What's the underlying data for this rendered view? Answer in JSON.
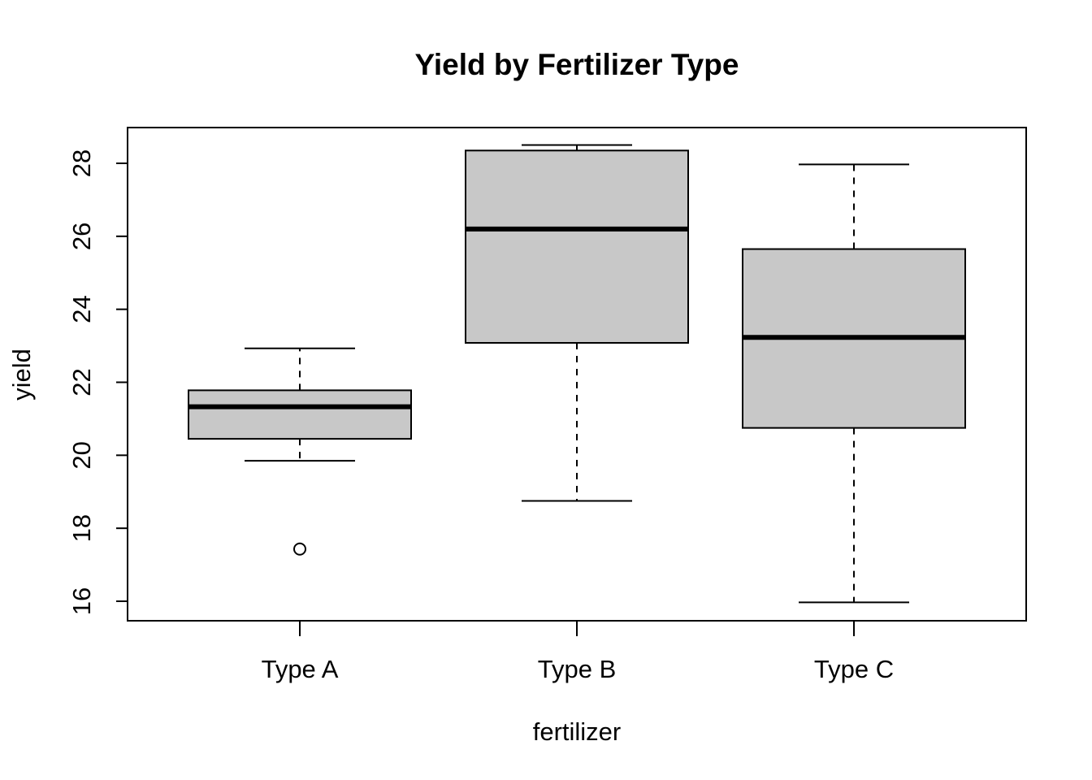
{
  "chart_data": {
    "type": "boxplot",
    "title": "Yield by Fertilizer Type",
    "xlabel": "fertilizer",
    "ylabel": "yield",
    "ylim": [
      15.5,
      29.0
    ],
    "yticks": [
      16,
      18,
      20,
      22,
      24,
      26,
      28
    ],
    "ytick_labels": [
      "16",
      "18",
      "20",
      "22",
      "24",
      "26",
      "28"
    ],
    "categories": [
      "Type A",
      "Type B",
      "Type C"
    ],
    "grid": false,
    "box_fill": "#c8c8c8",
    "boxes": [
      {
        "category": "Type A",
        "whisker_low": 19.85,
        "q1": 20.45,
        "median": 21.33,
        "q3": 21.78,
        "whisker_high": 22.93,
        "outliers": [
          17.43
        ]
      },
      {
        "category": "Type B",
        "whisker_low": 18.75,
        "q1": 23.08,
        "median": 26.2,
        "q3": 28.35,
        "whisker_high": 28.5,
        "outliers": []
      },
      {
        "category": "Type C",
        "whisker_low": 15.97,
        "q1": 20.75,
        "median": 23.23,
        "q3": 25.65,
        "whisker_high": 27.97,
        "outliers": []
      }
    ]
  }
}
